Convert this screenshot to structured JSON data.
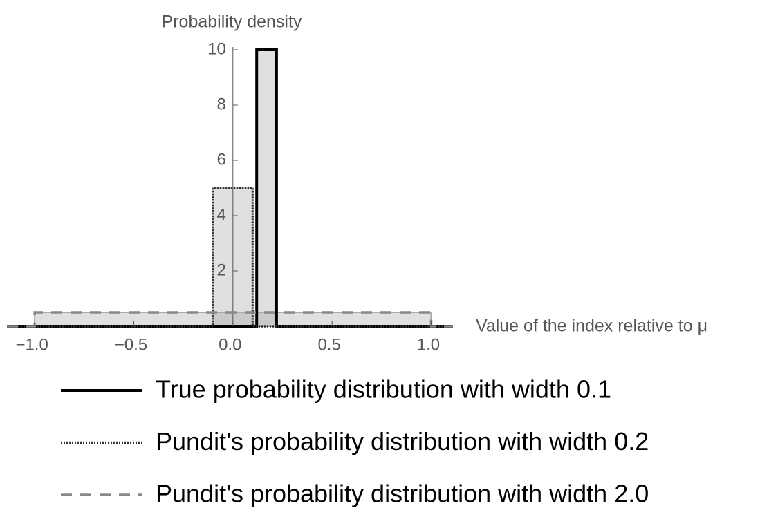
{
  "chart_data": {
    "type": "area",
    "y_label": "Probability density",
    "x_label": "Value of the index relative to μ",
    "xlim": [
      -1.14,
      1.11
    ],
    "ylim": [
      0,
      10.1
    ],
    "xticks": [
      {
        "value": -1,
        "label": "−1.0"
      },
      {
        "value": -0.5,
        "label": "−0.5"
      },
      {
        "value": 0,
        "label": "0.0"
      },
      {
        "value": 0.5,
        "label": "0.5"
      },
      {
        "value": 1,
        "label": "1.0"
      }
    ],
    "yticks": [
      2,
      4,
      6,
      8,
      10
    ],
    "series": [
      {
        "name": "True probability distribution with width 0.1",
        "color": "#000000",
        "dash": "solid",
        "x": [
          -1.14,
          0.12,
          0.12,
          0.22,
          0.22,
          1.11
        ],
        "values": [
          0,
          0,
          10,
          10,
          0,
          0
        ]
      },
      {
        "name": "Pundit's probability distribution with width 0.2",
        "color": "#333333",
        "dash": "dotted",
        "x": [
          -1.14,
          -0.1,
          -0.1,
          0.1,
          0.1,
          1.11
        ],
        "values": [
          0,
          0,
          5,
          5,
          0,
          0
        ]
      },
      {
        "name": "Pundit's probability distribution with width 2.0",
        "color": "#888888",
        "dash": "dashed",
        "x": [
          -1.14,
          -1,
          -1,
          1,
          1,
          1.11
        ],
        "values": [
          0,
          0,
          0.5,
          0.5,
          0,
          0
        ]
      }
    ]
  }
}
